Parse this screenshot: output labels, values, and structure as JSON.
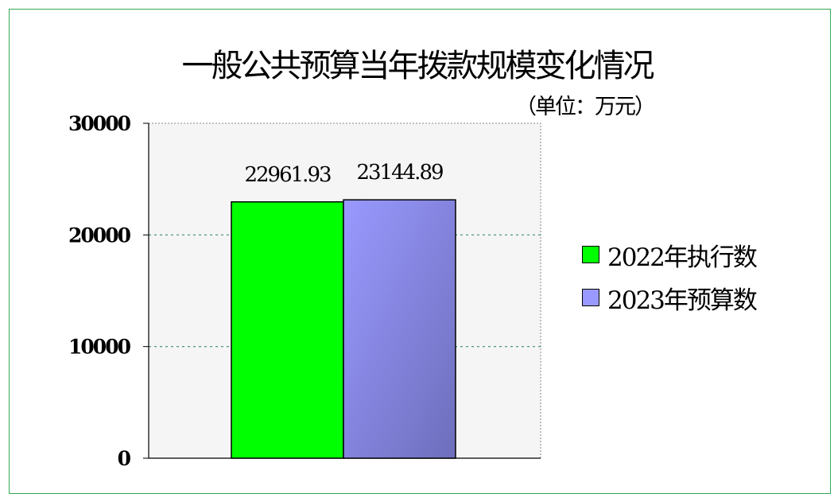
{
  "chart_data": {
    "type": "bar",
    "title": "一般公共预算当年拨款规模变化情况",
    "unit_note": "（单位：万元）",
    "categories": [
      ""
    ],
    "series": [
      {
        "name": "2022年执行数",
        "values": [
          22961.93
        ],
        "label": "22961.93",
        "color": "#00ff00"
      },
      {
        "name": "2023年预算数",
        "values": [
          23144.89
        ],
        "label": "23144.89",
        "color": "#9999ff"
      }
    ],
    "ylim": [
      0,
      30000
    ],
    "yticks": [
      0,
      10000,
      20000,
      30000
    ],
    "ytick_labels": [
      "0",
      "10000",
      "20000",
      "30000"
    ],
    "grid": true,
    "legend_position": "right",
    "plot_background": "#f5f5f5"
  }
}
